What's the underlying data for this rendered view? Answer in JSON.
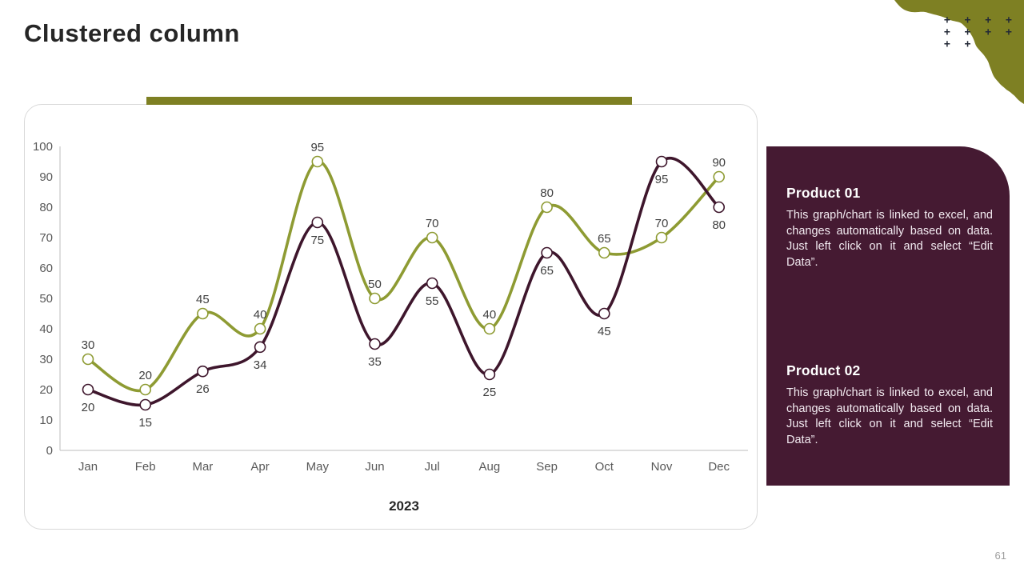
{
  "slide": {
    "title": "Clustered column",
    "page_number": "61"
  },
  "colors": {
    "accent_olive": "#7E8023",
    "series1_olive": "#8E9B33",
    "series2_maroon": "#3E162C",
    "panel_bg": "#451A32",
    "axis_line": "#c9c9c9",
    "plus_marks": "#232936"
  },
  "decor": {
    "plus_rows": "+ + + + +\n+ + + + +\n+ +"
  },
  "chart_data": {
    "type": "line",
    "title": "",
    "xlabel": "2023",
    "ylabel": "",
    "ylim": [
      0,
      100
    ],
    "yticks": [
      0,
      10,
      20,
      30,
      40,
      50,
      60,
      70,
      80,
      90,
      100
    ],
    "grid": false,
    "legend_position": "none",
    "marker": "circle-white-fill",
    "line_style": "smooth",
    "categories": [
      "Jan",
      "Feb",
      "Mar",
      "Apr",
      "May",
      "Jun",
      "Jul",
      "Aug",
      "Sep",
      "Oct",
      "Nov",
      "Dec"
    ],
    "series": [
      {
        "name": "Product 01",
        "color": "#8E9B33",
        "values": [
          30,
          20,
          45,
          40,
          95,
          50,
          70,
          40,
          80,
          65,
          70,
          90
        ],
        "label_position": "above"
      },
      {
        "name": "Product 02",
        "color": "#3E162C",
        "values": [
          20,
          15,
          26,
          34,
          75,
          35,
          55,
          25,
          65,
          45,
          95,
          80
        ],
        "label_position": "below"
      }
    ]
  },
  "panel": {
    "sections": [
      {
        "heading": "Product 01",
        "body": "This graph/chart is linked to excel, and changes automatically based on data. Just left click on it and select “Edit Data”."
      },
      {
        "heading": "Product 02",
        "body": "This graph/chart is linked to excel, and changes automatically based on data. Just left click on it and select “Edit Data”."
      }
    ]
  }
}
